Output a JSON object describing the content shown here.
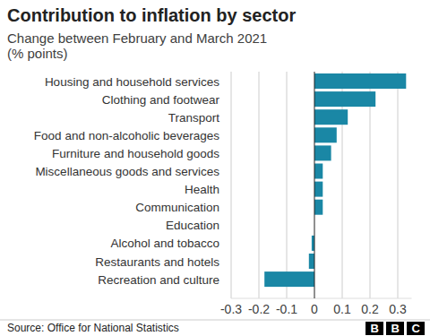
{
  "chart_data": {
    "type": "bar",
    "orientation": "horizontal",
    "title": "Contribution to inflation by sector",
    "subtitle": [
      "Change between February and March 2021",
      "(% points)"
    ],
    "categories": [
      "Housing and household services",
      "Clothing and footwear",
      "Transport",
      "Food and non-alcoholic beverages",
      "Furniture and household goods",
      "Miscellaneous goods and services",
      "Health",
      "Communication",
      "Education",
      "Alcohol and tobacco",
      "Restaurants and hotels",
      "Recreation and culture"
    ],
    "values": [
      0.33,
      0.22,
      0.12,
      0.08,
      0.06,
      0.03,
      0.03,
      0.03,
      0,
      -0.01,
      -0.02,
      -0.18
    ],
    "color": "#1a87a5",
    "xlim": [
      -0.3,
      0.35
    ],
    "xticks": [
      -0.3,
      -0.2,
      -0.1,
      0,
      0.1,
      0.2,
      0.3
    ],
    "grid": true,
    "source": "Source: Office for National Statistics",
    "credit": "BBC"
  }
}
